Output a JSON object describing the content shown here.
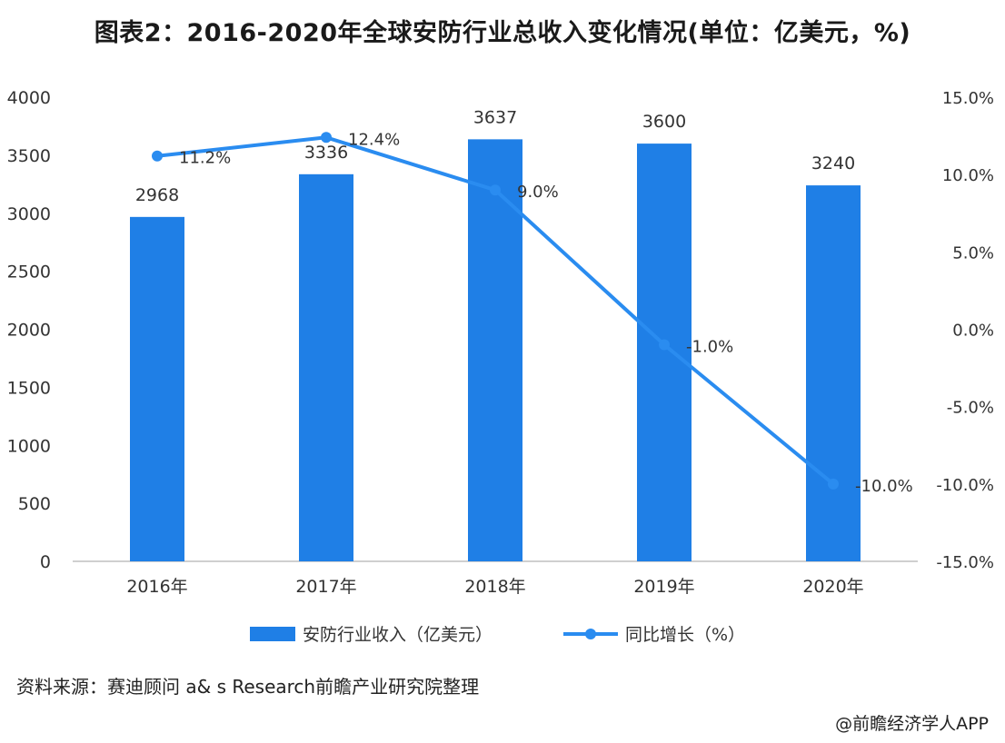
{
  "title": "图表2：2016-2020年全球安防行业总收入变化情况(单位：亿美元，%)",
  "chart_data": {
    "type": "bar",
    "categories": [
      "2016年",
      "2017年",
      "2018年",
      "2019年",
      "2020年"
    ],
    "series": [
      {
        "name": "安防行业收入（亿美元）",
        "type": "bar",
        "axis": "left",
        "values": [
          2968,
          3336,
          3637,
          3600,
          3240
        ],
        "labels": [
          "2968",
          "3336",
          "3637",
          "3600",
          "3240"
        ]
      },
      {
        "name": "同比增长（%）",
        "type": "line",
        "axis": "right",
        "values": [
          11.2,
          12.4,
          9.0,
          -1.0,
          -10.0
        ],
        "labels": [
          "11.2%",
          "12.4%",
          "9.0%",
          "-1.0%",
          "-10.0%"
        ]
      }
    ],
    "y_left": {
      "min": 0,
      "max": 4000,
      "ticks": [
        0,
        500,
        1000,
        1500,
        2000,
        2500,
        3000,
        3500,
        4000
      ],
      "tick_labels": [
        "0",
        "500",
        "1000",
        "1500",
        "2000",
        "2500",
        "3000",
        "3500",
        "4000"
      ]
    },
    "y_right": {
      "min": -15,
      "max": 15,
      "ticks": [
        -15,
        -10,
        -5,
        0,
        5,
        10,
        15
      ],
      "tick_labels": [
        "-15.0%",
        "-10.0%",
        "-5.0%",
        "0.0%",
        "5.0%",
        "10.0%",
        "15.0%"
      ]
    },
    "legend_position": "bottom",
    "grid": false
  },
  "colors": {
    "bar": "#1f7fe6",
    "line": "#2a8cf0",
    "axis": "#bfbfbf",
    "text": "#333333"
  },
  "source": "资料来源：赛迪顾问 a& s Research前瞻产业研究院整理",
  "credit": "@前瞻经济学人APP"
}
